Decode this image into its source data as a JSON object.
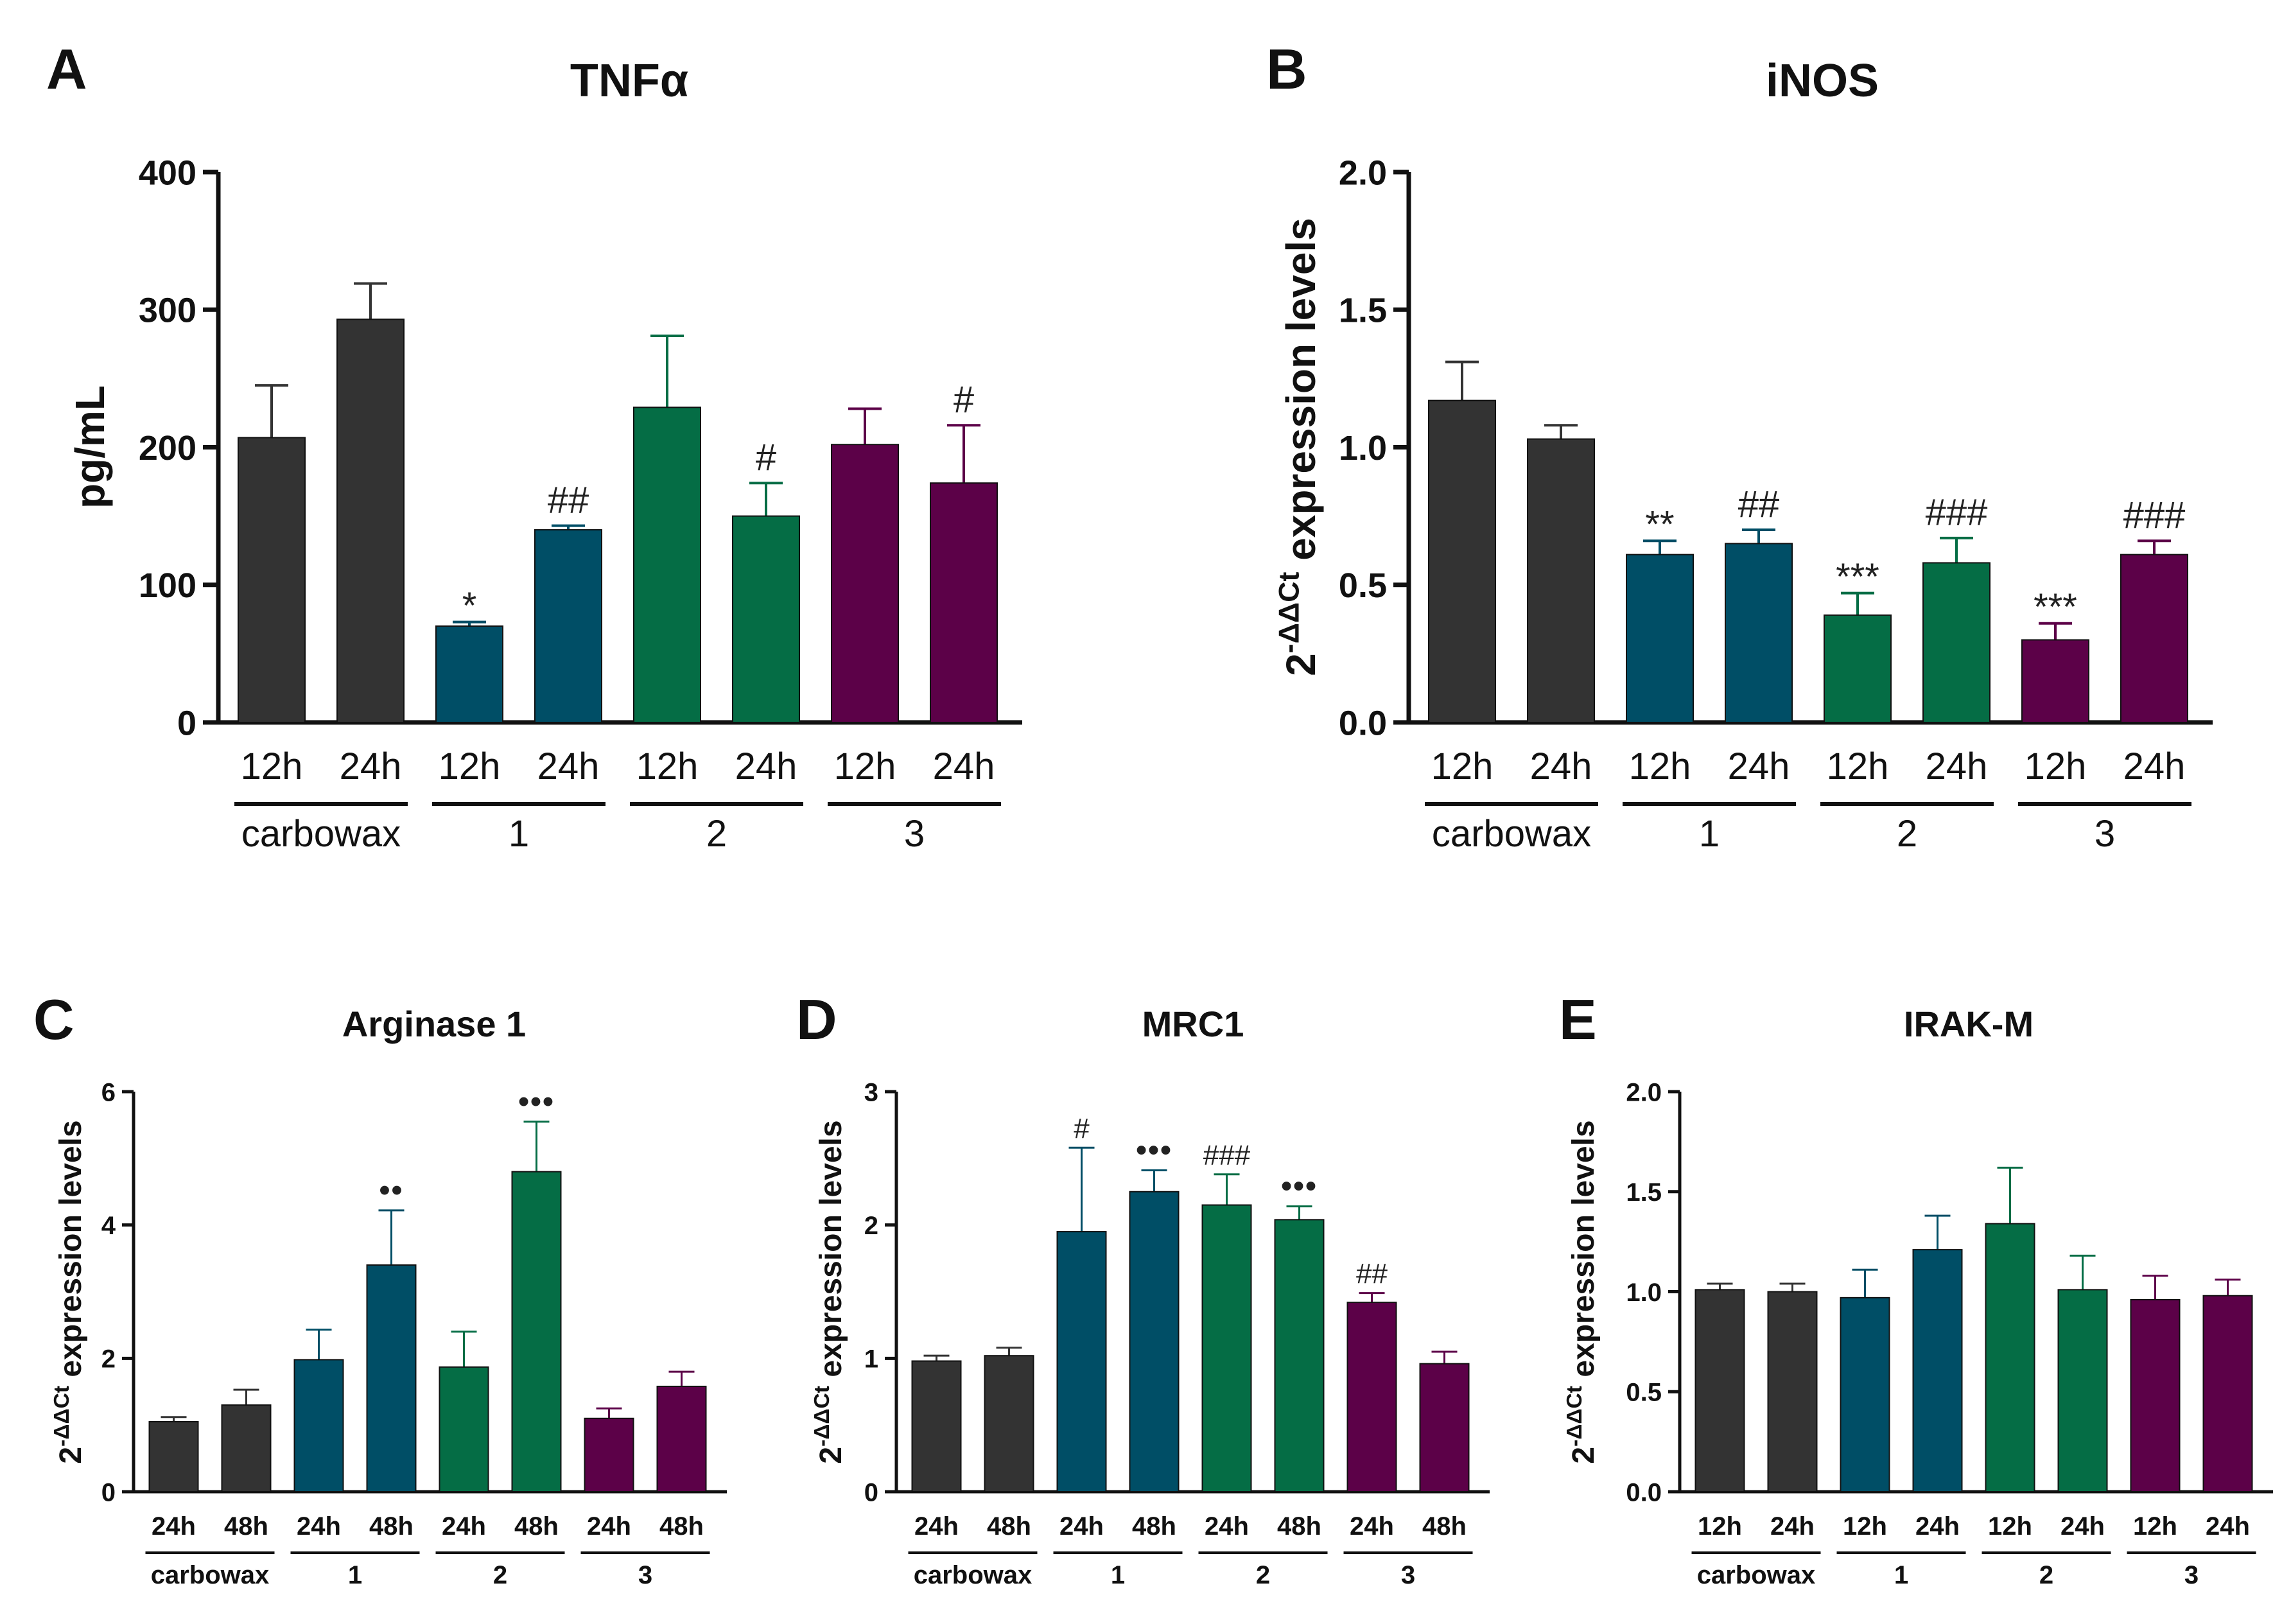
{
  "colors": {
    "carbowax": "#333333",
    "compound1": "#004e66",
    "compound2": "#056d45",
    "compound3": "#5c0148",
    "axis": "#111111",
    "annotation": "#222222"
  },
  "chart_data": [
    {
      "panel": "A",
      "type": "bar",
      "title": "TNFα",
      "ylabel": "pg/mL",
      "ylim": [
        0,
        400
      ],
      "yticks": [
        "0",
        "100",
        "200",
        "300",
        "400"
      ],
      "ytick_values": [
        0,
        100,
        200,
        300,
        400
      ],
      "categories": [
        "12h",
        "24h",
        "12h",
        "24h",
        "12h",
        "24h",
        "12h",
        "24h"
      ],
      "groups": [
        {
          "label": "carbowax",
          "color_key": "carbowax"
        },
        {
          "label": "1",
          "color_key": "compound1"
        },
        {
          "label": "2",
          "color_key": "compound2"
        },
        {
          "label": "3",
          "color_key": "compound3"
        }
      ],
      "values": [
        207,
        293,
        70,
        140,
        229,
        150,
        202,
        174
      ],
      "errors": [
        38,
        26,
        3,
        3,
        52,
        24,
        26,
        42
      ],
      "annotations": [
        "",
        "",
        "*",
        "##",
        "",
        "#",
        "",
        "#"
      ]
    },
    {
      "panel": "B",
      "type": "bar",
      "title": "iNOS",
      "ylabel_prefix": "2",
      "ylabel_sup": "-ΔΔCt",
      "ylabel_suffix": " expression levels",
      "ylim": [
        0,
        2
      ],
      "yticks": [
        "0.0",
        "0.5",
        "1.0",
        "1.5",
        "2.0"
      ],
      "ytick_values": [
        0,
        0.5,
        1,
        1.5,
        2
      ],
      "categories": [
        "12h",
        "24h",
        "12h",
        "24h",
        "12h",
        "24h",
        "12h",
        "24h"
      ],
      "groups": [
        {
          "label": "carbowax",
          "color_key": "carbowax"
        },
        {
          "label": "1",
          "color_key": "compound1"
        },
        {
          "label": "2",
          "color_key": "compound2"
        },
        {
          "label": "3",
          "color_key": "compound3"
        }
      ],
      "values": [
        1.17,
        1.03,
        0.61,
        0.65,
        0.39,
        0.58,
        0.3,
        0.61
      ],
      "errors": [
        0.14,
        0.05,
        0.05,
        0.05,
        0.08,
        0.09,
        0.06,
        0.05
      ],
      "annotations": [
        "",
        "",
        "**",
        "##",
        "***",
        "###",
        "***",
        "###"
      ]
    },
    {
      "panel": "C",
      "type": "bar",
      "title": "Arginase 1",
      "ylabel_prefix": "2",
      "ylabel_sup": "-ΔΔCt",
      "ylabel_suffix": " expression levels",
      "ylim": [
        0,
        6
      ],
      "yticks": [
        "0",
        "2",
        "4",
        "6"
      ],
      "ytick_values": [
        0,
        2,
        4,
        6
      ],
      "categories": [
        "24h",
        "48h",
        "24h",
        "48h",
        "24h",
        "48h",
        "24h",
        "48h"
      ],
      "groups": [
        {
          "label": "carbowax",
          "color_key": "carbowax"
        },
        {
          "label": "1",
          "color_key": "compound1"
        },
        {
          "label": "2",
          "color_key": "compound2"
        },
        {
          "label": "3",
          "color_key": "compound3"
        }
      ],
      "values": [
        1.05,
        1.3,
        1.98,
        3.4,
        1.87,
        4.8,
        1.1,
        1.58
      ],
      "errors": [
        0.07,
        0.23,
        0.45,
        0.82,
        0.53,
        0.75,
        0.15,
        0.22
      ],
      "annotations": [
        "",
        "",
        "",
        "••",
        "",
        "•••",
        "",
        ""
      ]
    },
    {
      "panel": "D",
      "type": "bar",
      "title": "MRC1",
      "ylabel_prefix": "2",
      "ylabel_sup": "-ΔΔCt",
      "ylabel_suffix": " expression levels",
      "ylim": [
        0,
        3
      ],
      "yticks": [
        "0",
        "1",
        "2",
        "3"
      ],
      "ytick_values": [
        0,
        1,
        2,
        3
      ],
      "categories": [
        "24h",
        "48h",
        "24h",
        "48h",
        "24h",
        "48h",
        "24h",
        "48h"
      ],
      "groups": [
        {
          "label": "carbowax",
          "color_key": "carbowax"
        },
        {
          "label": "1",
          "color_key": "compound1"
        },
        {
          "label": "2",
          "color_key": "compound2"
        },
        {
          "label": "3",
          "color_key": "compound3"
        }
      ],
      "values": [
        0.98,
        1.02,
        1.95,
        2.25,
        2.15,
        2.04,
        1.42,
        0.96
      ],
      "errors": [
        0.04,
        0.06,
        0.63,
        0.16,
        0.23,
        0.1,
        0.07,
        0.09
      ],
      "annotations": [
        "",
        "",
        "#",
        "•••",
        "###",
        "•••",
        "##",
        ""
      ]
    },
    {
      "panel": "E",
      "type": "bar",
      "title": "IRAK-M",
      "ylabel_prefix": "2",
      "ylabel_sup": "-ΔΔCt",
      "ylabel_suffix": " expression levels",
      "ylim": [
        0,
        2
      ],
      "yticks": [
        "0.0",
        "0.5",
        "1.0",
        "1.5",
        "2.0"
      ],
      "ytick_values": [
        0,
        0.5,
        1,
        1.5,
        2
      ],
      "categories": [
        "12h",
        "24h",
        "12h",
        "24h",
        "12h",
        "24h",
        "12h",
        "24h"
      ],
      "groups": [
        {
          "label": "carbowax",
          "color_key": "carbowax"
        },
        {
          "label": "1",
          "color_key": "compound1"
        },
        {
          "label": "2",
          "color_key": "compound2"
        },
        {
          "label": "3",
          "color_key": "compound3"
        }
      ],
      "values": [
        1.01,
        1.0,
        0.97,
        1.21,
        1.34,
        1.01,
        0.96,
        0.98
      ],
      "errors": [
        0.03,
        0.04,
        0.14,
        0.17,
        0.28,
        0.17,
        0.12,
        0.08
      ],
      "annotations": [
        "",
        "",
        "",
        "",
        "",
        "",
        "",
        ""
      ]
    }
  ]
}
